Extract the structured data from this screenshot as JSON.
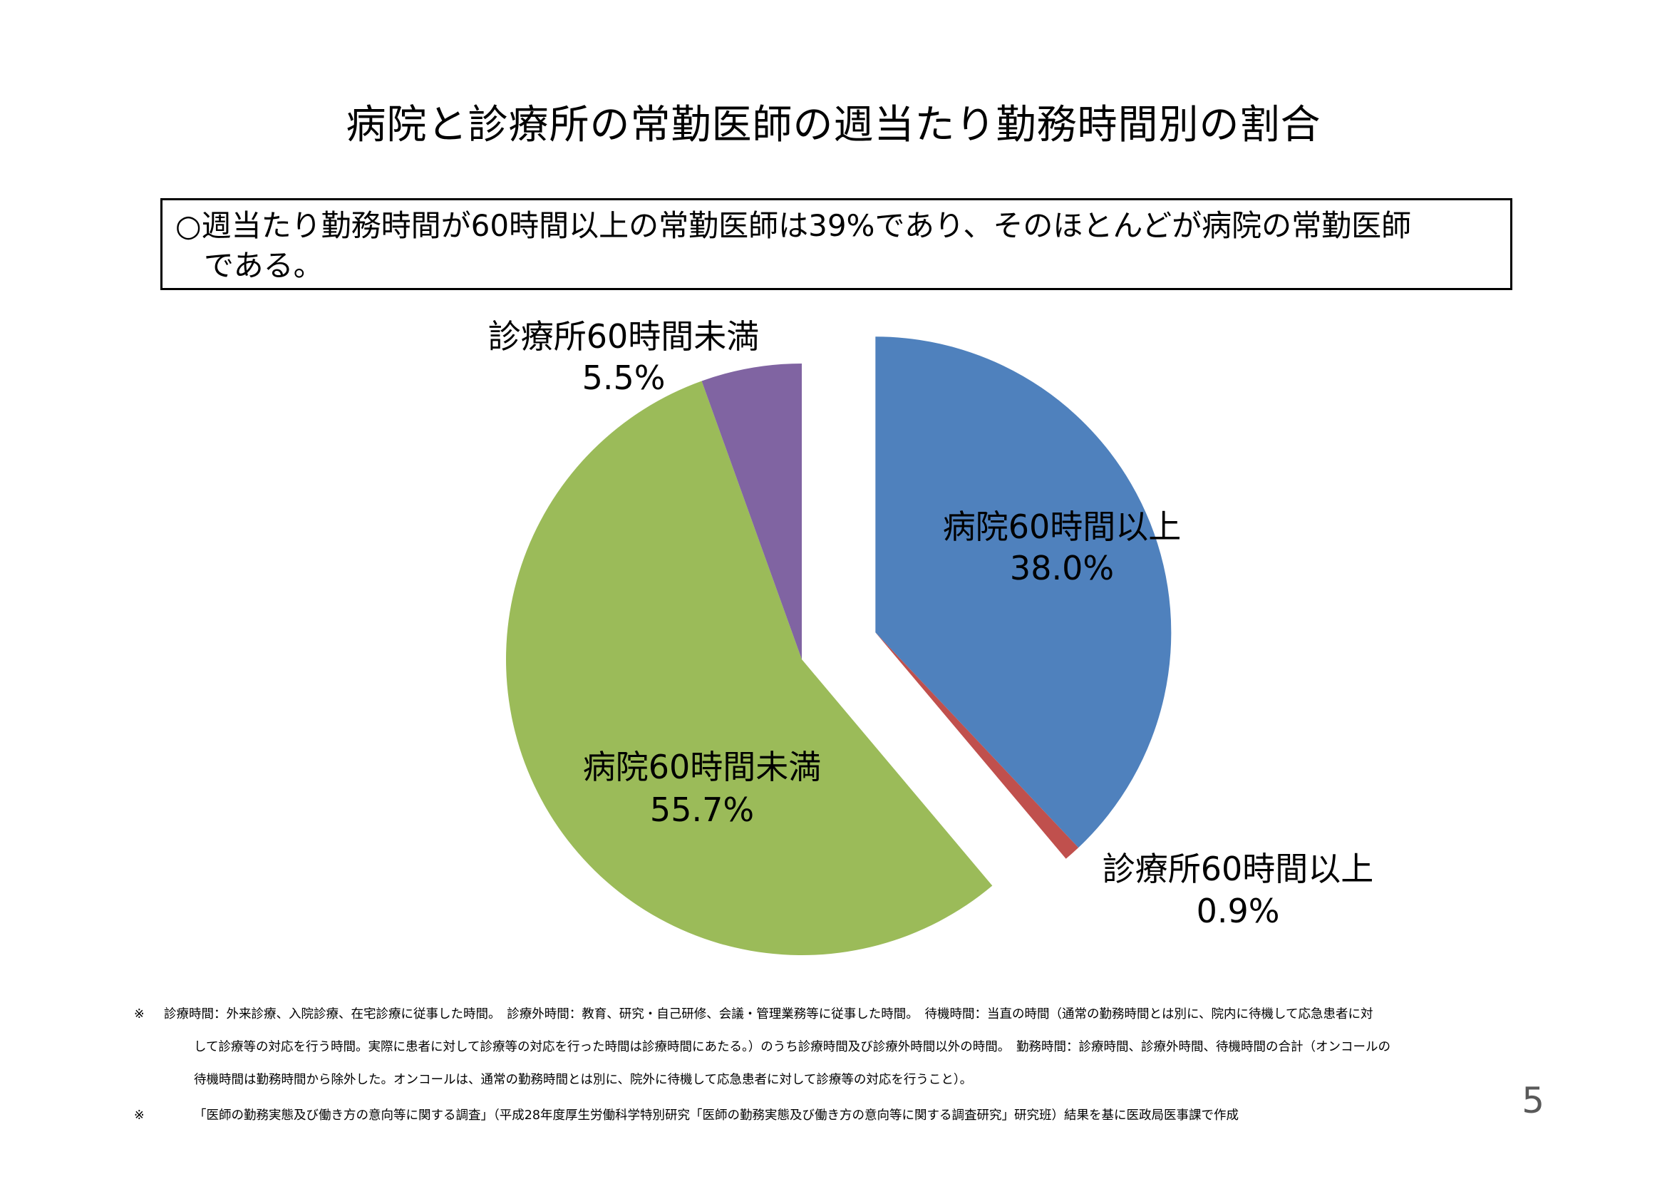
{
  "title": "病院と診療所の常勤医師の週当たり勤務時間別の割合",
  "summary": {
    "line1": "○週当たり勤務時間が60時間以上の常勤医師は39%であり、そのほとんどが病院の常勤医師",
    "line2": "である。"
  },
  "chart_data": {
    "type": "pie",
    "title": "",
    "slices": [
      {
        "name": "病院60時間以上",
        "value": 38.0,
        "label": "38.0%",
        "color": "#4f81bd",
        "exploded": true
      },
      {
        "name": "診療所60時間以上",
        "value": 0.9,
        "label": "0.9%",
        "color": "#c0504d",
        "exploded": true
      },
      {
        "name": "病院60時間未満",
        "value": 55.7,
        "label": "55.7%",
        "color": "#9bbb59",
        "exploded": false
      },
      {
        "name": "診療所60時間未満",
        "value": 5.5,
        "label": "5.5%",
        "color": "#8064a2",
        "exploded": false
      }
    ]
  },
  "notes": {
    "note1": {
      "mark": "※",
      "line1": "診療時間：外来診療、入院診療、在宅診療に従事した時間。　診療外時間：教育、研究・自己研修、会議・管理業務等に従事した時間。　待機時間：当直の時間（通常の勤務時間とは別に、院内に待機して応急患者に対",
      "line2": "して診療等の対応を行う時間。実際に患者に対して診療等の対応を行った時間は診療時間にあたる。）のうち診療時間及び診療外時間以外の時間。　勤務時間：診療時間、診療外時間、待機時間の合計（オンコールの",
      "line3": "待機時間は勤務時間から除外した。オンコールは、通常の勤務時間とは別に、院外に待機して応急患者に対して診療等の対応を行うこと）。"
    },
    "note2": {
      "mark": "※",
      "text": "「医師の勤務実態及び働き方の意向等に関する調査」（平成28年度厚生労働科学特別研究「医師の勤務実態及び働き方の意向等に関する調査研究」研究班）結果を基に医政局医事課で作成"
    }
  },
  "page_number": "5"
}
